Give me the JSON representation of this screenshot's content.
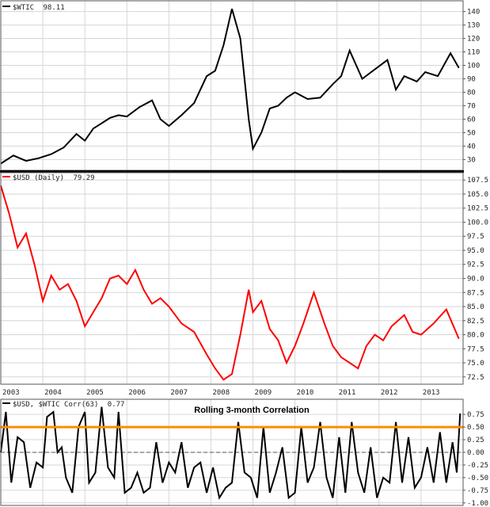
{
  "chart_data": [
    {
      "type": "line",
      "panel": "wtic",
      "legend_text": "$WTIC",
      "last_value_label": "98.11",
      "series_color": "#000000",
      "ylim": [
        22,
        148
      ],
      "y_ticks": [
        30,
        40,
        50,
        60,
        70,
        80,
        90,
        100,
        110,
        120,
        130,
        140
      ],
      "grid": true,
      "series": [
        {
          "name": "$WTIC",
          "x": [
            2003.0,
            2003.3,
            2003.6,
            2003.9,
            2004.2,
            2004.5,
            2004.8,
            2005.0,
            2005.2,
            2005.4,
            2005.6,
            2005.8,
            2006.0,
            2006.3,
            2006.6,
            2006.8,
            2007.0,
            2007.3,
            2007.6,
            2007.9,
            2008.1,
            2008.3,
            2008.5,
            2008.7,
            2008.9,
            2009.0,
            2009.2,
            2009.4,
            2009.6,
            2009.8,
            2010.0,
            2010.3,
            2010.6,
            2010.9,
            2011.1,
            2011.3,
            2011.6,
            2011.9,
            2012.2,
            2012.4,
            2012.6,
            2012.9,
            2013.1,
            2013.4,
            2013.7,
            2013.9
          ],
          "values": [
            27,
            33,
            29,
            31,
            34,
            39,
            49,
            44,
            53,
            57,
            61,
            63,
            62,
            69,
            74,
            60,
            55,
            63,
            72,
            92,
            96,
            115,
            142,
            120,
            60,
            38,
            50,
            68,
            70,
            76,
            80,
            75,
            76,
            86,
            92,
            111,
            90,
            97,
            104,
            82,
            92,
            88,
            95,
            92,
            109,
            98.11
          ]
        }
      ]
    },
    {
      "type": "line",
      "panel": "usd",
      "legend_text": "$USD (Daily)",
      "last_value_label": "79.29",
      "series_color": "#ff0000",
      "ylim": [
        71.2,
        108.8
      ],
      "y_ticks": [
        72.5,
        75.0,
        77.5,
        80.0,
        82.5,
        85.0,
        87.5,
        90.0,
        92.5,
        95.0,
        97.5,
        100.0,
        102.5,
        105.0,
        107.5
      ],
      "x_ticks": [
        "2003",
        "2004",
        "2005",
        "2006",
        "2007",
        "2008",
        "2009",
        "2010",
        "2011",
        "2012",
        "2013"
      ],
      "grid": true,
      "series": [
        {
          "name": "$USD (Daily)",
          "x": [
            2003.0,
            2003.2,
            2003.4,
            2003.6,
            2003.8,
            2004.0,
            2004.2,
            2004.4,
            2004.6,
            2004.8,
            2005.0,
            2005.2,
            2005.4,
            2005.6,
            2005.8,
            2006.0,
            2006.2,
            2006.4,
            2006.6,
            2006.8,
            2007.0,
            2007.3,
            2007.6,
            2007.9,
            2008.1,
            2008.3,
            2008.5,
            2008.7,
            2008.9,
            2009.0,
            2009.2,
            2009.4,
            2009.6,
            2009.8,
            2010.0,
            2010.2,
            2010.45,
            2010.7,
            2010.9,
            2011.1,
            2011.3,
            2011.5,
            2011.7,
            2011.9,
            2012.1,
            2012.3,
            2012.6,
            2012.8,
            2013.0,
            2013.3,
            2013.6,
            2013.9
          ],
          "values": [
            106.5,
            101.5,
            95.5,
            98,
            92.5,
            86,
            90.5,
            88,
            89,
            86,
            81.5,
            84,
            86.5,
            90,
            90.5,
            89,
            91.5,
            88,
            85.5,
            86.5,
            85,
            82,
            80.5,
            76.5,
            74,
            72,
            73,
            80,
            88,
            84,
            86,
            81,
            79,
            75,
            78,
            82,
            87.5,
            82,
            78,
            76,
            75,
            74,
            78,
            80,
            79,
            81.5,
            83.5,
            80.5,
            80,
            82,
            84.5,
            79.29
          ]
        }
      ]
    },
    {
      "type": "line",
      "panel": "correlation",
      "legend_text": "$USD, $WTIC Corr(63)",
      "last_value_label": "0.77",
      "annotation": "Rolling 3-month Correlation",
      "series_color": "#000000",
      "reference_line": {
        "value": 0.5,
        "color": "#ff8c00"
      },
      "zero_line": true,
      "ylim": [
        -1.05,
        1.05
      ],
      "y_ticks": [
        -1.0,
        -0.75,
        -0.5,
        -0.25,
        0.0,
        0.25,
        0.5,
        0.75
      ],
      "grid": true,
      "series": [
        {
          "name": "$USD, $WTIC Corr(63)",
          "x": [
            2003.0,
            2003.12,
            2003.25,
            2003.4,
            2003.55,
            2003.7,
            2003.85,
            2004.0,
            2004.1,
            2004.25,
            2004.35,
            2004.45,
            2004.55,
            2004.7,
            2004.85,
            2005.0,
            2005.1,
            2005.25,
            2005.4,
            2005.55,
            2005.7,
            2005.8,
            2005.95,
            2006.1,
            2006.25,
            2006.4,
            2006.55,
            2006.7,
            2006.85,
            2007.0,
            2007.15,
            2007.3,
            2007.45,
            2007.6,
            2007.75,
            2007.9,
            2008.05,
            2008.2,
            2008.35,
            2008.5,
            2008.65,
            2008.8,
            2008.95,
            2009.1,
            2009.25,
            2009.4,
            2009.55,
            2009.7,
            2009.85,
            2010.0,
            2010.15,
            2010.3,
            2010.45,
            2010.6,
            2010.75,
            2010.9,
            2011.05,
            2011.2,
            2011.35,
            2011.5,
            2011.65,
            2011.8,
            2011.95,
            2012.1,
            2012.25,
            2012.4,
            2012.55,
            2012.7,
            2012.85,
            2013.0,
            2013.15,
            2013.3,
            2013.45,
            2013.6,
            2013.75,
            2013.85,
            2013.93
          ],
          "values": [
            0.0,
            0.8,
            -0.6,
            0.3,
            0.2,
            -0.7,
            -0.2,
            -0.3,
            0.7,
            0.8,
            0.0,
            0.1,
            -0.5,
            -0.8,
            0.5,
            0.8,
            -0.6,
            -0.4,
            0.9,
            -0.3,
            -0.5,
            0.8,
            -0.8,
            -0.7,
            -0.4,
            -0.8,
            -0.7,
            0.2,
            -0.6,
            -0.2,
            -0.4,
            0.2,
            -0.7,
            -0.3,
            -0.2,
            -0.8,
            -0.3,
            -0.9,
            -0.7,
            -0.6,
            0.6,
            -0.4,
            -0.5,
            -0.9,
            0.5,
            -0.8,
            -0.4,
            0.1,
            -0.9,
            -0.8,
            0.5,
            -0.6,
            -0.3,
            0.6,
            -0.5,
            -0.9,
            0.3,
            -0.8,
            0.6,
            -0.4,
            -0.8,
            0.1,
            -0.9,
            -0.5,
            -0.6,
            0.6,
            -0.6,
            0.3,
            -0.7,
            -0.5,
            0.1,
            -0.6,
            0.4,
            -0.6,
            0.2,
            -0.4,
            0.77
          ]
        }
      ]
    }
  ]
}
